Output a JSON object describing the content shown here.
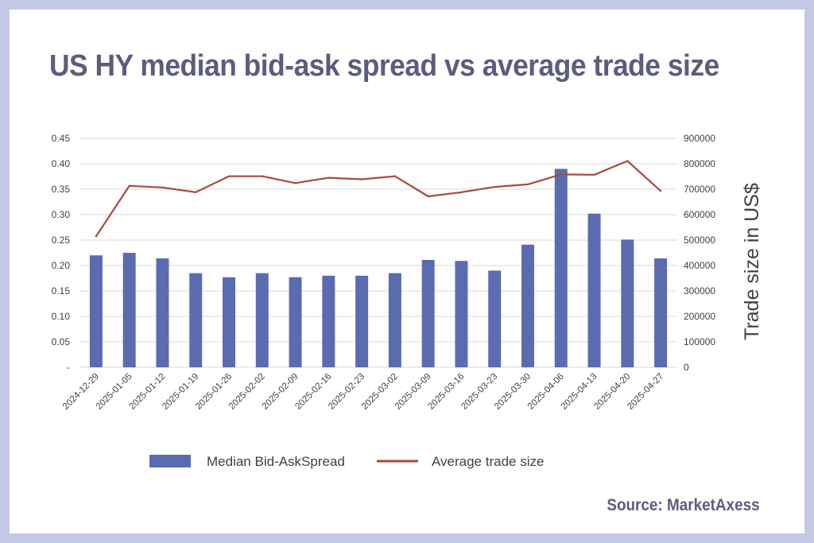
{
  "title": "US HY median bid-ask spread vs average trade size",
  "source": "Source: MarketAxess",
  "chart_data": {
    "type": "bar",
    "categories": [
      "2024-12-29",
      "2025-01-05",
      "2025-01-12",
      "2025-01-19",
      "2025-01-26",
      "2025-02-02",
      "2025-02-09",
      "2025-02-16",
      "2025-02-23",
      "2025-03-02",
      "2025-03-09",
      "2025-03-16",
      "2025-03-23",
      "2025-03-30",
      "2025-04-06",
      "2025-04-13",
      "2025-04-20",
      "2025-04-27"
    ],
    "series": [
      {
        "name": "Median Bid-AskSpread",
        "type": "bar",
        "axis": "left",
        "color": "#5b6bb0",
        "values": [
          0.22,
          0.225,
          0.214,
          0.185,
          0.177,
          0.185,
          0.177,
          0.18,
          0.18,
          0.185,
          0.211,
          0.209,
          0.19,
          0.241,
          0.39,
          0.302,
          0.251,
          0.214
        ]
      },
      {
        "name": "Average trade size",
        "type": "line",
        "axis": "right",
        "color": "#a84a3e",
        "values": [
          515000,
          713000,
          707000,
          688000,
          751000,
          751000,
          724000,
          745000,
          739000,
          751000,
          672000,
          688000,
          709000,
          719000,
          758000,
          757000,
          811000,
          693000
        ]
      }
    ],
    "y_left": {
      "ticks": [
        "-",
        "0.05",
        "0.10",
        "0.15",
        "0.20",
        "0.25",
        "0.30",
        "0.35",
        "0.40",
        "0.45"
      ],
      "range": [
        0,
        0.45
      ]
    },
    "y_right": {
      "label": "Trade size in US$",
      "ticks": [
        "0",
        "100000",
        "200000",
        "300000",
        "400000",
        "500000",
        "600000",
        "700000",
        "800000",
        "900000"
      ],
      "range": [
        0,
        900000
      ]
    },
    "grid": true,
    "legend_position": "bottom"
  }
}
